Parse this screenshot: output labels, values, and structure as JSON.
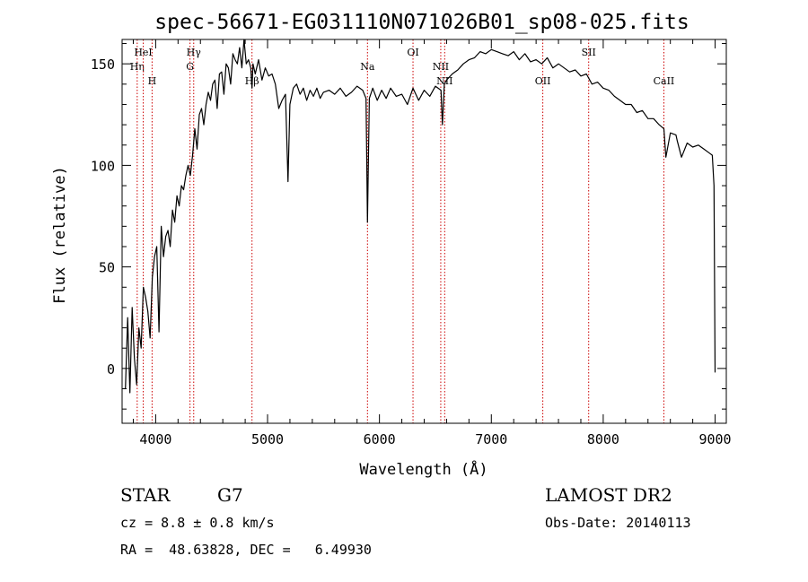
{
  "chart_data": {
    "type": "line",
    "title": "spec-56671-EG031110N071026B01_sp08-025.fits",
    "xlabel": "Wavelength (Å)",
    "ylabel": "Flux (relative)",
    "xlim": [
      3700,
      9100
    ],
    "ylim": [
      -27,
      162
    ],
    "xticks": [
      4000,
      5000,
      6000,
      7000,
      8000,
      9000
    ],
    "yticks": [
      0,
      50,
      100,
      150
    ],
    "grid": false,
    "line_color": "#000000",
    "marker_color": "#cc0000",
    "spectrum": {
      "x": [
        3730,
        3750,
        3770,
        3790,
        3810,
        3830,
        3850,
        3870,
        3890,
        3910,
        3930,
        3950,
        3970,
        3990,
        4010,
        4030,
        4050,
        4070,
        4090,
        4110,
        4130,
        4150,
        4170,
        4190,
        4210,
        4230,
        4250,
        4270,
        4290,
        4310,
        4330,
        4350,
        4370,
        4390,
        4410,
        4430,
        4450,
        4470,
        4490,
        4510,
        4530,
        4550,
        4570,
        4590,
        4610,
        4630,
        4650,
        4670,
        4690,
        4710,
        4730,
        4750,
        4770,
        4790,
        4810,
        4830,
        4850,
        4861,
        4870,
        4890,
        4920,
        4950,
        4980,
        5010,
        5040,
        5070,
        5100,
        5130,
        5160,
        5183,
        5200,
        5230,
        5260,
        5290,
        5320,
        5350,
        5380,
        5410,
        5440,
        5470,
        5500,
        5550,
        5600,
        5650,
        5700,
        5750,
        5800,
        5850,
        5880,
        5893,
        5910,
        5940,
        5980,
        6020,
        6060,
        6100,
        6150,
        6200,
        6250,
        6300,
        6350,
        6400,
        6450,
        6500,
        6550,
        6563,
        6580,
        6600,
        6650,
        6700,
        6750,
        6800,
        6850,
        6900,
        6950,
        7000,
        7050,
        7100,
        7150,
        7200,
        7250,
        7300,
        7350,
        7400,
        7450,
        7500,
        7550,
        7600,
        7650,
        7700,
        7750,
        7800,
        7850,
        7900,
        7950,
        8000,
        8050,
        8100,
        8150,
        8200,
        8250,
        8300,
        8350,
        8400,
        8450,
        8500,
        8542,
        8560,
        8600,
        8650,
        8662,
        8700,
        8750,
        8800,
        8850,
        8900,
        8950,
        8975,
        8990,
        9000
      ],
      "y": [
        -10,
        25,
        -12,
        30,
        5,
        -8,
        20,
        10,
        40,
        35,
        28,
        15,
        45,
        55,
        60,
        18,
        70,
        55,
        65,
        68,
        60,
        78,
        72,
        85,
        80,
        90,
        88,
        95,
        100,
        95,
        105,
        118,
        108,
        125,
        128,
        120,
        130,
        136,
        132,
        140,
        142,
        128,
        145,
        146,
        135,
        150,
        148,
        140,
        155,
        152,
        150,
        158,
        148,
        162,
        150,
        152,
        148,
        138,
        150,
        145,
        152,
        142,
        148,
        144,
        145,
        140,
        128,
        132,
        135,
        92,
        130,
        138,
        140,
        135,
        138,
        132,
        137,
        134,
        138,
        133,
        136,
        137,
        135,
        138,
        134,
        136,
        139,
        137,
        133,
        72,
        133,
        138,
        132,
        137,
        133,
        138,
        134,
        135,
        130,
        138,
        132,
        137,
        134,
        139,
        137,
        120,
        140,
        142,
        145,
        147,
        150,
        152,
        153,
        156,
        155,
        157,
        156,
        155,
        154,
        156,
        152,
        155,
        151,
        152,
        150,
        153,
        148,
        150,
        148,
        146,
        147,
        144,
        145,
        140,
        141,
        138,
        137,
        134,
        132,
        130,
        130,
        126,
        127,
        123,
        123,
        120,
        118,
        104,
        116,
        115,
        112,
        104,
        111,
        109,
        110,
        108,
        106,
        105,
        90,
        -2
      ]
    },
    "lines": [
      {
        "label": "Hη",
        "wl": 3835,
        "row": 2
      },
      {
        "label": "HeI",
        "wl": 3889,
        "row": 1
      },
      {
        "label": "H",
        "wl": 3968,
        "row": 3
      },
      {
        "label": "Hγ",
        "wl": 4340,
        "row": 1
      },
      {
        "label": "G",
        "wl": 4307,
        "row": 2
      },
      {
        "label": "Hβ",
        "wl": 4861,
        "row": 3
      },
      {
        "label": "Na",
        "wl": 5893,
        "row": 2
      },
      {
        "label": "OI",
        "wl": 6300,
        "row": 1
      },
      {
        "label": "NII",
        "wl": 6548,
        "row": 2
      },
      {
        "label": "NII",
        "wl": 6583,
        "row": 3
      },
      {
        "label": "OII",
        "wl": 7460,
        "row": 3
      },
      {
        "label": "SII",
        "wl": 7870,
        "row": 1
      },
      {
        "label": "CaII",
        "wl": 8542,
        "row": 3
      }
    ]
  },
  "info": {
    "class_label": "STAR",
    "subclass": "G7",
    "survey": "LAMOST DR2",
    "redshift_text": "cz = 8.8 ± 0.8 km/s",
    "obs_date": "Obs-Date: 20140113",
    "coords": "RA =  48.63828, DEC =   6.49930"
  }
}
